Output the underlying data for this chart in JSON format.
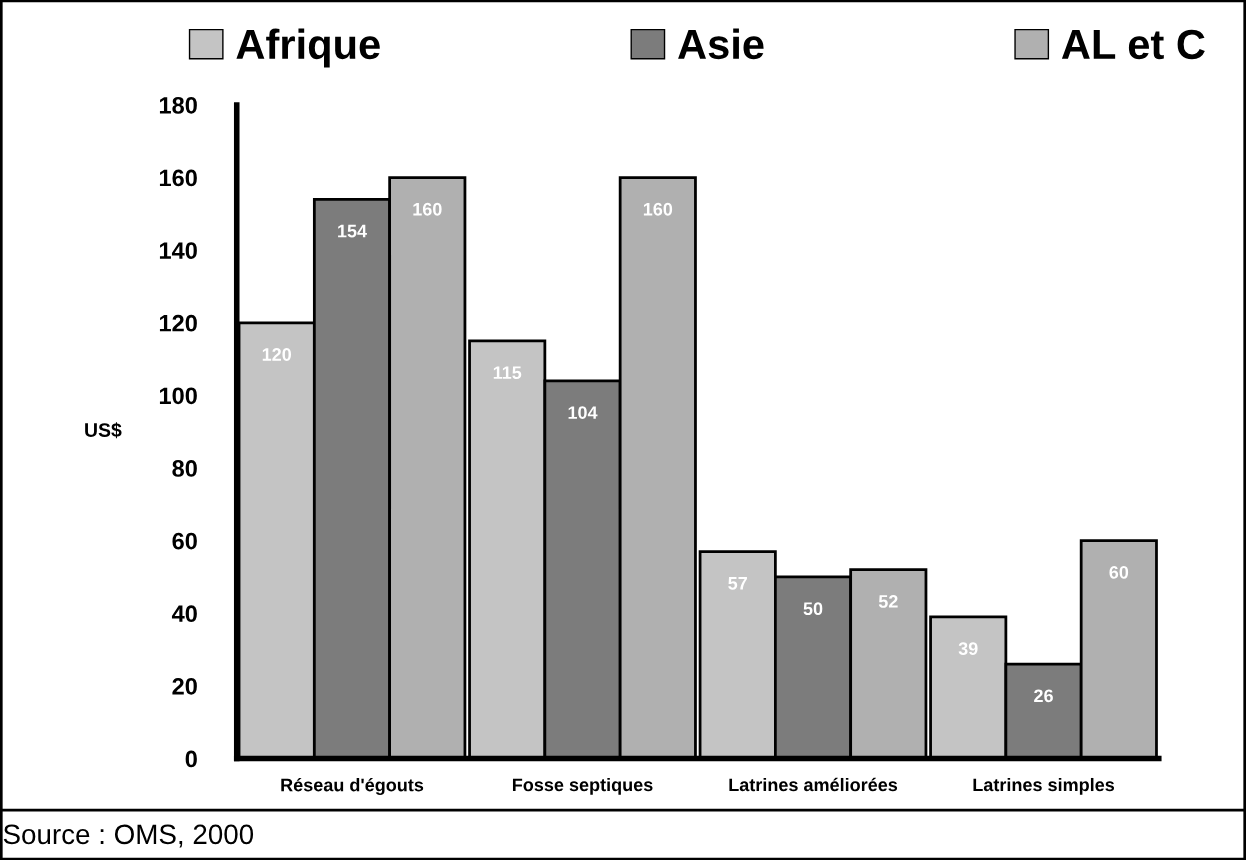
{
  "chart_data": {
    "type": "bar",
    "categories": [
      "Réseau d'égouts",
      "Fosse septiques",
      "Latrines améliorées",
      "Latrines simples"
    ],
    "series": [
      {
        "name": "Afrique",
        "color": "#c4c4c4",
        "values": [
          120,
          115,
          57,
          39
        ]
      },
      {
        "name": "Asie",
        "color": "#7c7c7c",
        "values": [
          154,
          104,
          50,
          26
        ]
      },
      {
        "name": "AL et C",
        "color": "#b0b0b0",
        "values": [
          160,
          160,
          52,
          60
        ]
      }
    ],
    "ylabel": "US$",
    "ylim": [
      0,
      180
    ],
    "yticks": [
      0,
      20,
      40,
      60,
      80,
      100,
      120,
      140,
      160,
      180
    ],
    "data_labels": true,
    "legend": "top",
    "grid": false,
    "annotations": [
      "Source : OMS, 2000"
    ]
  }
}
